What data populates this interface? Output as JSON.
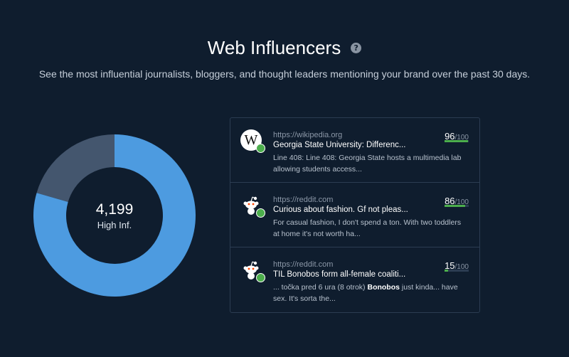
{
  "header": {
    "title": "Web Influencers",
    "help_icon": "?",
    "subtitle": "See the most influential journalists, bloggers, and thought leaders mentioning your brand over the past 30 days."
  },
  "donut": {
    "value": "4,199",
    "label": "High Inf.",
    "high_fraction": 0.795,
    "colors": {
      "high": "#4d9be0",
      "other": "#44566e"
    }
  },
  "influencers": [
    {
      "avatar": "wikipedia-logo",
      "avatar_text": "W",
      "source": "https://wikipedia.org",
      "headline": "Georgia State University: Differenc...",
      "snippet_parts": [
        "Line 408: Line 408:   Georgia State hosts a multimedia lab allowing students access..."
      ],
      "score": "96",
      "max": "/100",
      "score_fraction": 0.96
    },
    {
      "avatar": "reddit-alien",
      "source": "https://reddit.com",
      "headline": "Curious about fashion. Gf not pleas...",
      "snippet_parts": [
        "For casual fashion, I don't spend a ton. With two toddlers at home it's not worth ha..."
      ],
      "score": "86",
      "max": "/100",
      "score_fraction": 0.86
    },
    {
      "avatar": "reddit-alien",
      "source": "https://reddit.com",
      "headline": "TIL Bonobos form all-female coaliti...",
      "snippet_parts": [
        "... točka pred 6 ura   (8 otrok) ",
        "Bonobos",
        " just kinda... have sex. It's sorta the..."
      ],
      "score": "15",
      "max": "/100",
      "score_fraction": 0.15
    }
  ],
  "colors": {
    "score_bar": "#4cae4c",
    "badge": "#4cae4c"
  }
}
